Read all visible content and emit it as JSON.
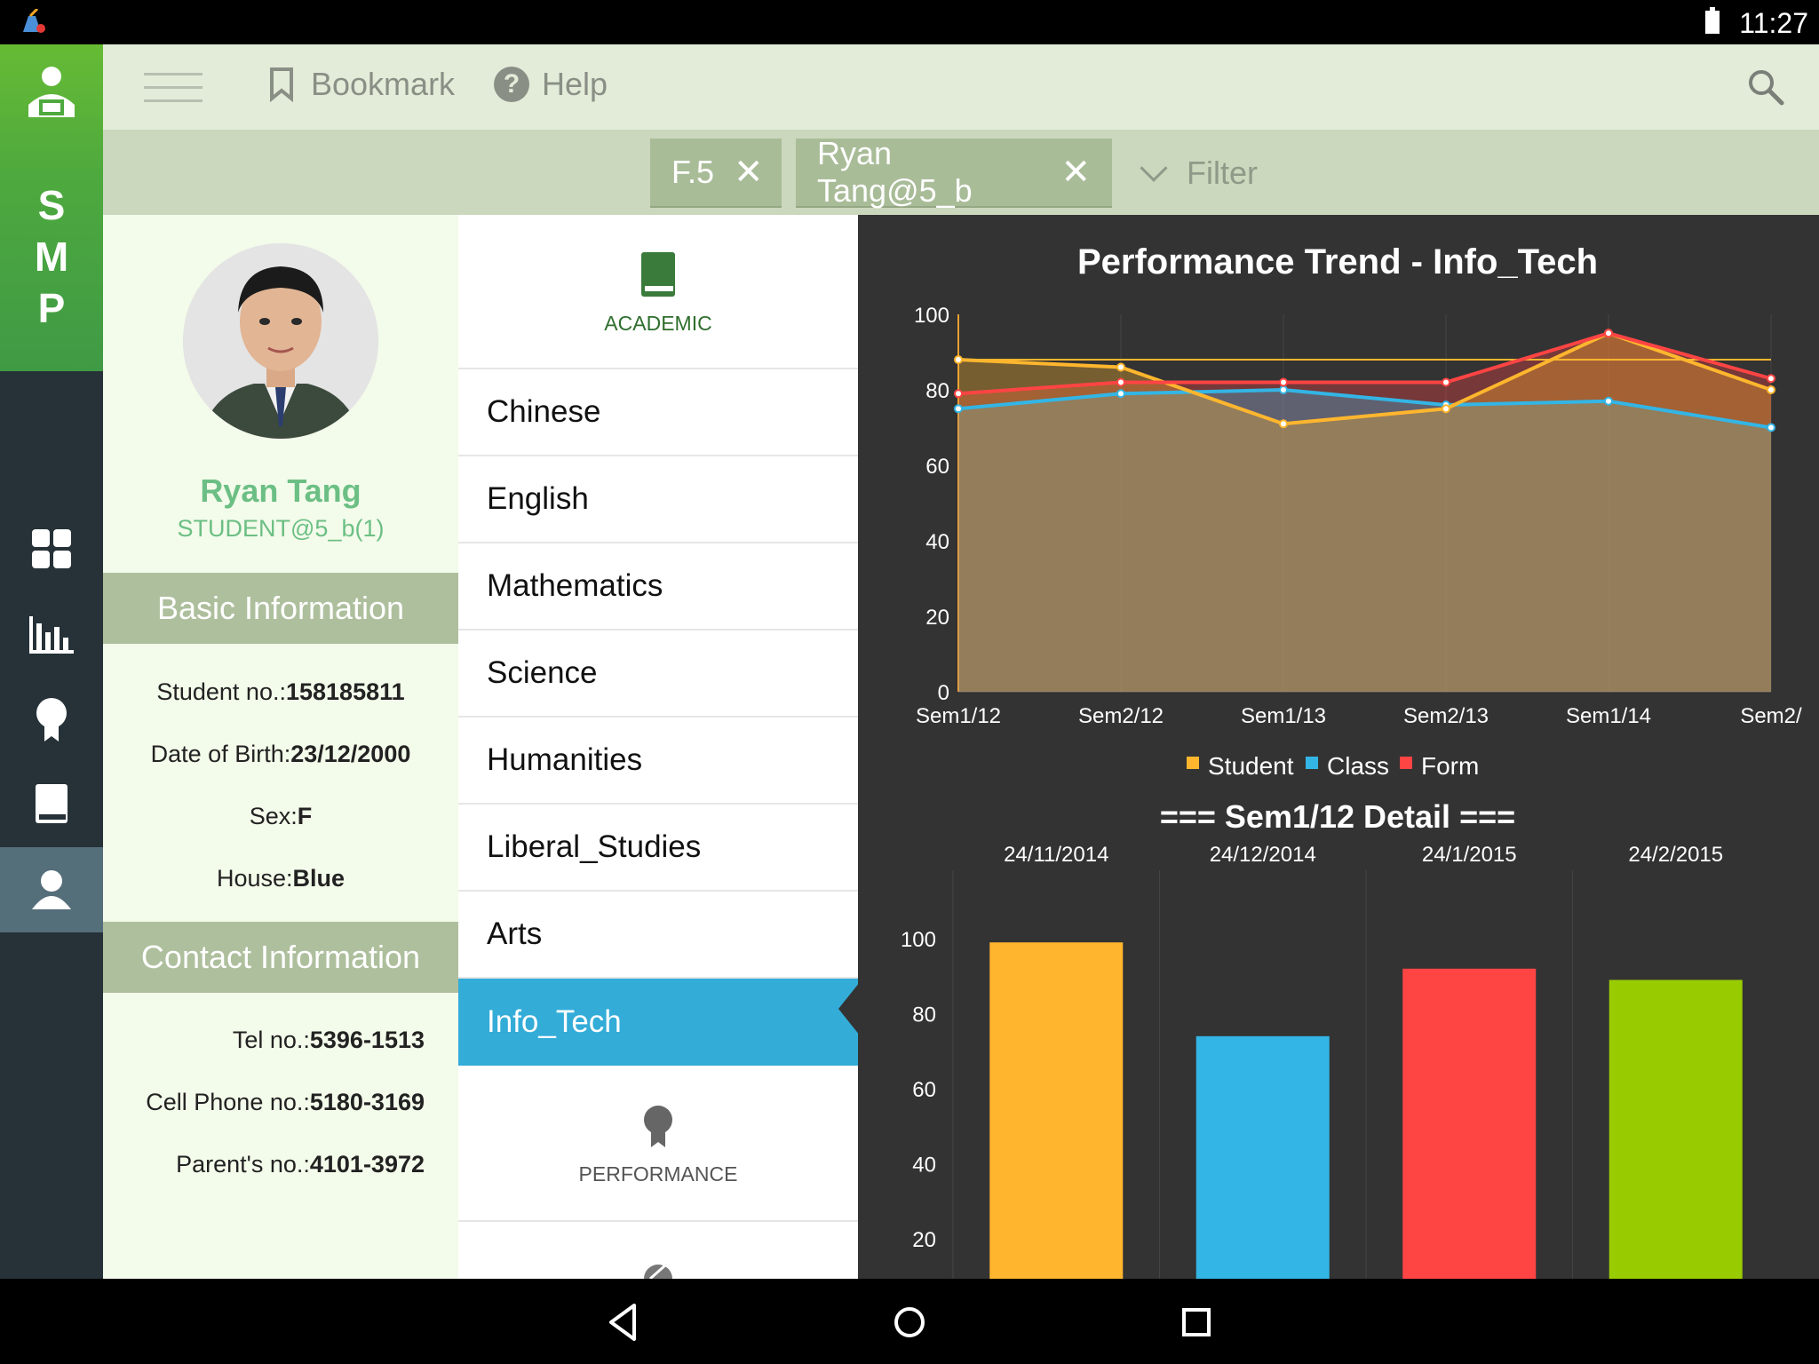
{
  "status": {
    "time": "11:27"
  },
  "rail": {
    "logo_letters": [
      "S",
      "M",
      "P"
    ],
    "icons": [
      "dashboard-icon",
      "bar-chart-icon",
      "award-icon",
      "book-icon",
      "profile-icon"
    ]
  },
  "appbar": {
    "bookmark_label": "Bookmark",
    "help_label": "Help",
    "help_glyph": "?"
  },
  "filters": {
    "chips": [
      "F.5",
      "Ryan Tang@5_b"
    ],
    "filter_label": "Filter"
  },
  "profile": {
    "name": "Ryan Tang",
    "role": "STUDENT@5_b(1)",
    "basic_header": "Basic Information",
    "student_no_label": "Student no.:",
    "student_no": "158185811",
    "dob_label": "Date of Birth:",
    "dob": "23/12/2000",
    "sex_label": "Sex:",
    "sex": "F",
    "house_label": "House:",
    "house": "Blue",
    "contact_header": "Contact Information",
    "tel_label": "Tel no.:",
    "tel": "5396-1513",
    "cell_label": "Cell Phone no.:",
    "cell": "5180-3169",
    "parent_label": "Parent's no.:",
    "parent": "4101-3972"
  },
  "subjects": {
    "academic_label": "ACADEMIC",
    "performance_label": "PERFORMANCE",
    "items": [
      "Chinese",
      "English",
      "Mathematics",
      "Science",
      "Humanities",
      "Liberal_Studies",
      "Arts",
      "Info_Tech"
    ],
    "active": "Info_Tech"
  },
  "colors": {
    "student": "#ffb62e",
    "class": "#33b5e5",
    "form": "#ff4444",
    "extra": "#99cc00",
    "active_subject": "#33acd8"
  },
  "chart_data": [
    {
      "type": "area",
      "title": "Performance Trend - Info_Tech",
      "categories": [
        "Sem1/12",
        "Sem2/12",
        "Sem1/13",
        "Sem2/13",
        "Sem1/14",
        "Sem2/"
      ],
      "ylim": [
        0,
        100
      ],
      "yticks": [
        0,
        20,
        40,
        60,
        80,
        100
      ],
      "grid": true,
      "legend": "bottom-center",
      "reference_line": 88,
      "series": [
        {
          "name": "Student",
          "values": [
            88,
            86,
            71,
            75,
            95,
            80
          ]
        },
        {
          "name": "Class",
          "values": [
            75,
            79,
            80,
            76,
            77,
            70
          ]
        },
        {
          "name": "Form",
          "values": [
            79,
            82,
            82,
            82,
            95,
            83
          ]
        }
      ]
    },
    {
      "type": "bar",
      "title": "=== Sem1/12 Detail ===",
      "categories": [
        "24/11/2014",
        "24/12/2014",
        "24/1/2015",
        "24/2/2015"
      ],
      "values": [
        99,
        74,
        92,
        89
      ],
      "ylim": [
        0,
        110
      ],
      "yticks": [
        20,
        40,
        60,
        80,
        100
      ],
      "grid": true
    }
  ]
}
